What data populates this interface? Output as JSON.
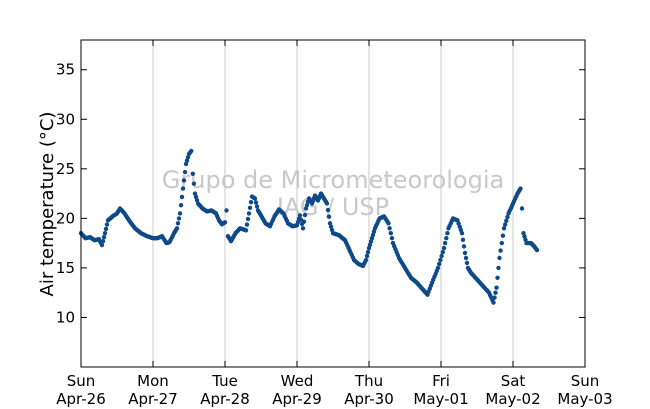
{
  "chart_data": {
    "type": "scatter",
    "title": "",
    "xlabel": "",
    "ylabel": "Air temperature (°C)",
    "watermark": [
      "Grupo de Micrometeorologia",
      "IAG / USP"
    ],
    "xlim": [
      "2015-04-26T00:00",
      "2015-05-03T00:00"
    ],
    "ylim": [
      5,
      38
    ],
    "yticks": [
      10,
      15,
      20,
      25,
      30,
      35
    ],
    "xticks": [
      {
        "weekday": "Sun",
        "date": "Apr-26"
      },
      {
        "weekday": "Mon",
        "date": "Apr-27"
      },
      {
        "weekday": "Tue",
        "date": "Apr-28"
      },
      {
        "weekday": "Wed",
        "date": "Apr-29"
      },
      {
        "weekday": "Thu",
        "date": "Apr-30"
      },
      {
        "weekday": "Fri",
        "date": "May-01"
      },
      {
        "weekday": "Sat",
        "date": "May-02"
      },
      {
        "weekday": "Sun",
        "date": "May-03"
      }
    ],
    "grid": "vertical",
    "series": [
      {
        "color": "#0e4a8a",
        "points": [
          [
            "2015-04-26T00:00",
            18.5
          ],
          [
            "2015-04-26T01:30",
            18.0
          ],
          [
            "2015-04-26T03:00",
            18.1
          ],
          [
            "2015-04-26T04:30",
            17.8
          ],
          [
            "2015-04-26T06:00",
            17.9
          ],
          [
            "2015-04-26T07:00",
            17.3
          ],
          [
            "2015-04-26T08:00",
            18.5
          ],
          [
            "2015-04-26T09:00",
            19.8
          ],
          [
            "2015-04-26T10:30",
            20.2
          ],
          [
            "2015-04-26T12:00",
            20.5
          ],
          [
            "2015-04-26T13:00",
            21.0
          ],
          [
            "2015-04-26T14:30",
            20.5
          ],
          [
            "2015-04-26T16:00",
            19.8
          ],
          [
            "2015-04-26T18:00",
            19.0
          ],
          [
            "2015-04-26T20:00",
            18.5
          ],
          [
            "2015-04-26T22:00",
            18.2
          ],
          [
            "2015-04-27T00:00",
            18.0
          ],
          [
            "2015-04-27T01:30",
            18.0
          ],
          [
            "2015-04-27T03:00",
            18.2
          ],
          [
            "2015-04-27T04:30",
            17.5
          ],
          [
            "2015-04-27T05:30",
            17.6
          ],
          [
            "2015-04-27T07:00",
            18.5
          ],
          [
            "2015-04-27T08:00",
            19.0
          ],
          [
            "2015-04-27T09:00",
            20.5
          ],
          [
            "2015-04-27T10:00",
            23.0
          ],
          [
            "2015-04-27T11:00",
            25.5
          ],
          [
            "2015-04-27T12:00",
            26.5
          ],
          [
            "2015-04-27T12:45",
            26.8
          ],
          [
            "2015-04-27T13:15",
            24.5
          ],
          [
            "2015-04-27T14:00",
            22.5
          ],
          [
            "2015-04-27T15:00",
            21.5
          ],
          [
            "2015-04-27T16:30",
            21.0
          ],
          [
            "2015-04-27T18:00",
            20.7
          ],
          [
            "2015-04-27T19:30",
            20.8
          ],
          [
            "2015-04-27T21:00",
            20.5
          ],
          [
            "2015-04-27T22:00",
            19.8
          ],
          [
            "2015-04-27T23:00",
            19.4
          ],
          [
            "2015-04-28T00:00",
            19.6
          ],
          [
            "2015-04-28T00:30",
            20.8
          ],
          [
            "2015-04-28T01:00",
            18.2
          ],
          [
            "2015-04-28T02:00",
            17.7
          ],
          [
            "2015-04-28T03:30",
            18.5
          ],
          [
            "2015-04-28T05:00",
            19.0
          ],
          [
            "2015-04-28T07:00",
            18.8
          ],
          [
            "2015-04-28T08:00",
            20.5
          ],
          [
            "2015-04-28T09:00",
            22.2
          ],
          [
            "2015-04-28T10:00",
            22.0
          ],
          [
            "2015-04-28T11:00",
            20.8
          ],
          [
            "2015-04-28T12:00",
            20.3
          ],
          [
            "2015-04-28T13:30",
            19.5
          ],
          [
            "2015-04-28T15:00",
            19.2
          ],
          [
            "2015-04-28T16:30",
            20.2
          ],
          [
            "2015-04-28T18:00",
            20.9
          ],
          [
            "2015-04-28T19:30",
            20.5
          ],
          [
            "2015-04-28T21:00",
            19.5
          ],
          [
            "2015-04-28T22:30",
            19.2
          ],
          [
            "2015-04-29T00:00",
            19.3
          ],
          [
            "2015-04-29T01:00",
            20.3
          ],
          [
            "2015-04-29T02:00",
            19.0
          ],
          [
            "2015-04-29T03:00",
            21.0
          ],
          [
            "2015-04-29T04:00",
            22.0
          ],
          [
            "2015-04-29T05:00",
            21.5
          ],
          [
            "2015-04-29T06:00",
            22.3
          ],
          [
            "2015-04-29T07:00",
            21.8
          ],
          [
            "2015-04-29T08:00",
            22.5
          ],
          [
            "2015-04-29T09:00",
            22.0
          ],
          [
            "2015-04-29T10:00",
            21.5
          ],
          [
            "2015-04-29T11:00",
            19.5
          ],
          [
            "2015-04-29T12:00",
            18.5
          ],
          [
            "2015-04-29T14:00",
            18.3
          ],
          [
            "2015-04-29T16:00",
            17.8
          ],
          [
            "2015-04-29T17:30",
            16.8
          ],
          [
            "2015-04-29T19:00",
            15.8
          ],
          [
            "2015-04-29T20:30",
            15.4
          ],
          [
            "2015-04-29T22:00",
            15.2
          ],
          [
            "2015-04-29T23:00",
            15.8
          ],
          [
            "2015-04-30T00:00",
            17.0
          ],
          [
            "2015-04-30T01:00",
            18.0
          ],
          [
            "2015-04-30T02:00",
            19.0
          ],
          [
            "2015-04-30T03:30",
            20.0
          ],
          [
            "2015-04-30T05:00",
            20.2
          ],
          [
            "2015-04-30T06:30",
            19.5
          ],
          [
            "2015-04-30T08:00",
            17.5
          ],
          [
            "2015-04-30T10:00",
            16.0
          ],
          [
            "2015-04-30T12:00",
            15.0
          ],
          [
            "2015-04-30T14:00",
            14.0
          ],
          [
            "2015-04-30T16:00",
            13.5
          ],
          [
            "2015-04-30T18:00",
            12.8
          ],
          [
            "2015-04-30T19:30",
            12.3
          ],
          [
            "2015-04-30T21:00",
            13.5
          ],
          [
            "2015-04-30T23:00",
            15.0
          ],
          [
            "2015-05-01T01:00",
            17.0
          ],
          [
            "2015-05-01T02:30",
            19.0
          ],
          [
            "2015-05-01T04:00",
            20.0
          ],
          [
            "2015-05-01T05:30",
            19.8
          ],
          [
            "2015-05-01T07:00",
            18.5
          ],
          [
            "2015-05-01T08:00",
            16.5
          ],
          [
            "2015-05-01T09:00",
            15.0
          ],
          [
            "2015-05-01T10:00",
            14.5
          ],
          [
            "2015-05-01T11:30",
            14.0
          ],
          [
            "2015-05-01T13:00",
            13.5
          ],
          [
            "2015-05-01T14:30",
            13.0
          ],
          [
            "2015-05-01T16:00",
            12.5
          ],
          [
            "2015-05-01T17:30",
            11.5
          ],
          [
            "2015-05-01T18:30",
            13.0
          ],
          [
            "2015-05-01T19:30",
            16.0
          ],
          [
            "2015-05-01T21:00",
            19.0
          ],
          [
            "2015-05-01T22:30",
            20.5
          ],
          [
            "2015-05-02T00:00",
            21.5
          ],
          [
            "2015-05-02T01:30",
            22.5
          ],
          [
            "2015-05-02T02:30",
            23.0
          ],
          [
            "2015-05-02T03:00",
            21.0
          ],
          [
            "2015-05-02T03:30",
            18.5
          ],
          [
            "2015-05-02T04:30",
            17.5
          ],
          [
            "2015-05-02T06:00",
            17.5
          ],
          [
            "2015-05-02T07:00",
            17.2
          ],
          [
            "2015-05-02T08:00",
            16.8
          ]
        ]
      }
    ]
  }
}
